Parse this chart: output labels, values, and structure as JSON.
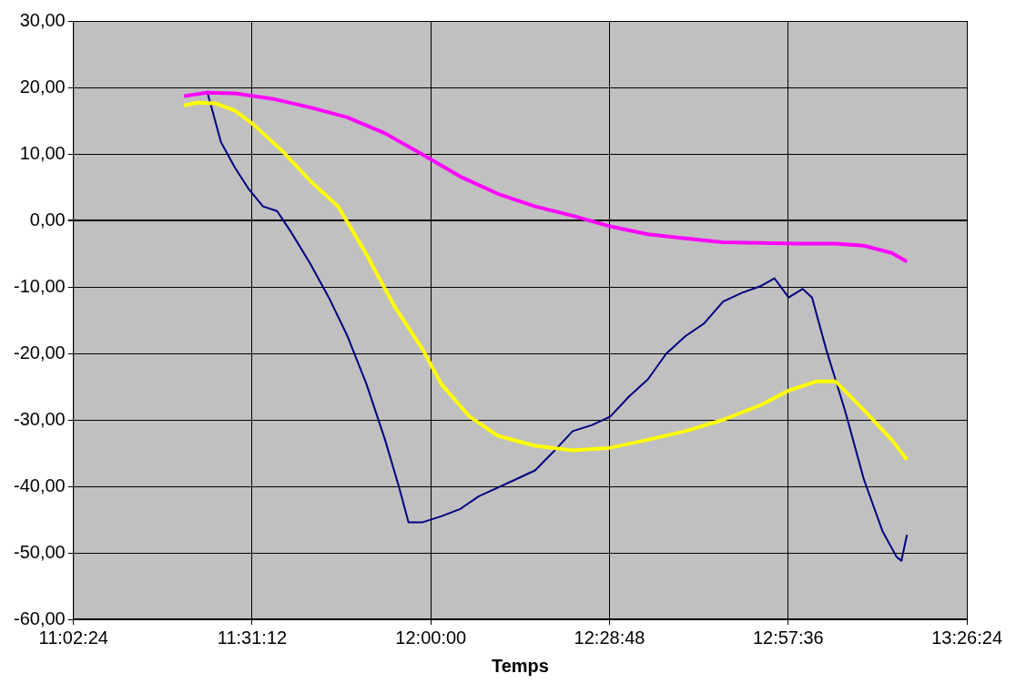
{
  "chart_data": {
    "type": "line",
    "xlabel": "Temps",
    "xlim": [
      11.04,
      13.44
    ],
    "xticks": [
      {
        "value": 11.04,
        "label": "11:02:24"
      },
      {
        "value": 11.52,
        "label": "11:31:12"
      },
      {
        "value": 12,
        "label": "12:00:00"
      },
      {
        "value": 12.48,
        "label": "12:28:48"
      },
      {
        "value": 12.96,
        "label": "12:57:36"
      },
      {
        "value": 13.44,
        "label": "13:26:24"
      }
    ],
    "ylim": [
      -60,
      30
    ],
    "yticks": [
      {
        "value": -60,
        "label": "-60,00"
      },
      {
        "value": -50,
        "label": "-50,00"
      },
      {
        "value": -40,
        "label": "-40,00"
      },
      {
        "value": -30,
        "label": "-30,00"
      },
      {
        "value": -20,
        "label": "-20,00"
      },
      {
        "value": -10,
        "label": "-10,00"
      },
      {
        "value": 0,
        "label": "0,00"
      },
      {
        "value": 10,
        "label": "10,00"
      },
      {
        "value": 20,
        "label": "20,00"
      },
      {
        "value": 30,
        "label": "30,00"
      }
    ],
    "grid": true,
    "marker": "none",
    "line_style": "solid",
    "series": [
      {
        "color": "#ff00ff",
        "x": [
          11.337,
          11.398,
          11.474,
          11.574,
          11.675,
          11.776,
          11.877,
          11.978,
          12.079,
          12.18,
          12.28,
          12.381,
          12.482,
          12.583,
          12.684,
          12.785,
          12.885,
          12.986,
          13.087,
          13.163,
          13.238,
          13.279
        ],
        "values": [
          18.7,
          19.2,
          19.1,
          18.3,
          17.0,
          15.5,
          13.1,
          9.9,
          6.6,
          4.0,
          2.1,
          0.7,
          -0.9,
          -2.1,
          -2.7,
          -3.3,
          -3.4,
          -3.5,
          -3.5,
          -3.8,
          -4.9,
          -6.2
        ]
      },
      {
        "color": "#ffff00",
        "x": [
          11.337,
          11.373,
          11.423,
          11.474,
          11.524,
          11.6,
          11.675,
          11.751,
          11.827,
          11.902,
          11.978,
          12.028,
          12.104,
          12.18,
          12.28,
          12.381,
          12.482,
          12.583,
          12.684,
          12.785,
          12.885,
          12.961,
          13.037,
          13.087,
          13.163,
          13.238,
          13.279
        ],
        "values": [
          17.3,
          17.7,
          17.6,
          16.5,
          14.4,
          10.5,
          6.0,
          2.1,
          -5.1,
          -12.9,
          -19.4,
          -24.6,
          -29.5,
          -32.4,
          -33.9,
          -34.6,
          -34.2,
          -33.0,
          -31.7,
          -30.0,
          -27.8,
          -25.6,
          -24.2,
          -24.2,
          -28.5,
          -33.0,
          -36.0
        ]
      },
      {
        "color": "#000080",
        "x": [
          11.4,
          11.436,
          11.474,
          11.511,
          11.549,
          11.587,
          11.625,
          11.675,
          11.726,
          11.776,
          11.827,
          11.877,
          11.915,
          11.94,
          11.978,
          12.028,
          12.079,
          12.129,
          12.18,
          12.23,
          12.28,
          12.331,
          12.381,
          12.432,
          12.482,
          12.532,
          12.583,
          12.633,
          12.684,
          12.734,
          12.785,
          12.835,
          12.885,
          12.923,
          12.961,
          12.999,
          13.024,
          13.062,
          13.112,
          13.163,
          13.213,
          13.251,
          13.264,
          13.279
        ],
        "values": [
          19.2,
          11.8,
          7.9,
          4.7,
          2.1,
          1.4,
          -1.8,
          -6.4,
          -11.6,
          -17.4,
          -24.6,
          -33.0,
          -40.2,
          -45.4,
          -45.4,
          -44.5,
          -43.4,
          -41.5,
          -40.2,
          -38.9,
          -37.6,
          -34.7,
          -31.7,
          -30.8,
          -29.5,
          -26.5,
          -23.9,
          -20.0,
          -17.4,
          -15.5,
          -12.2,
          -10.9,
          -9.9,
          -8.7,
          -11.6,
          -10.3,
          -11.6,
          -19.4,
          -28.5,
          -38.9,
          -46.7,
          -50.6,
          -51.2,
          -47.3
        ]
      }
    ]
  }
}
